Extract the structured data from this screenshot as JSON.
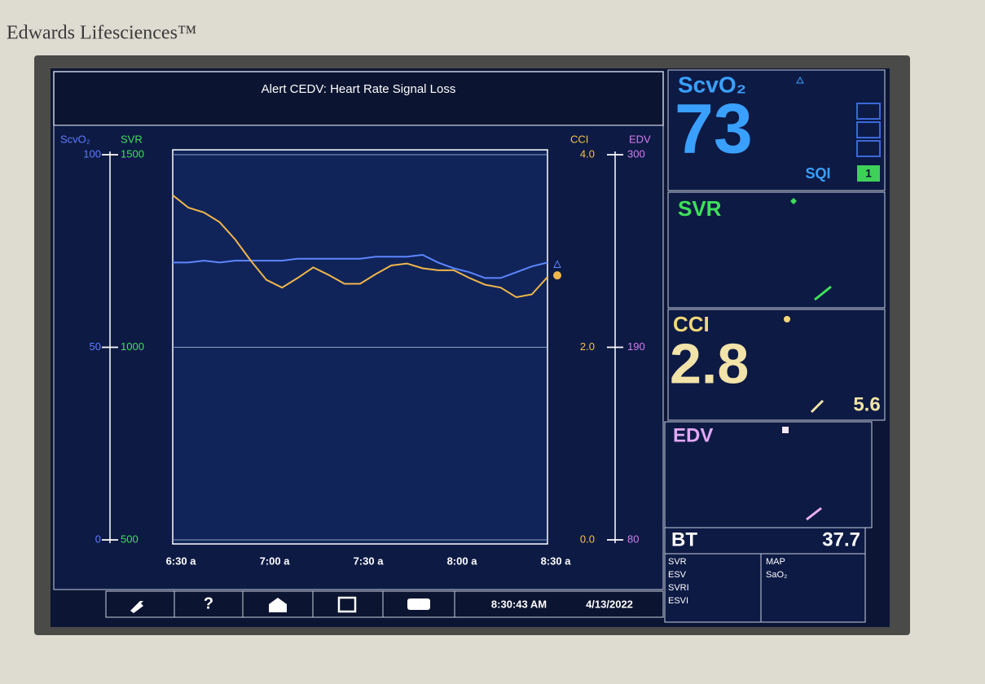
{
  "brand": "Edwards Lifesciences™",
  "alert": "Alert CEDV: Heart Rate Signal Loss",
  "chart_data": {
    "type": "line",
    "categories": [
      "6:30 a",
      null,
      null,
      null,
      null,
      null,
      "7:00 a",
      null,
      null,
      null,
      null,
      null,
      "7:30 a",
      null,
      null,
      null,
      null,
      null,
      "8:00 a",
      null,
      null,
      null,
      null,
      null,
      "8:30 a"
    ],
    "axes": [
      {
        "label": "ScvO₂",
        "color": "#5d7cff",
        "lim": [
          0,
          100
        ],
        "ticks": [
          0,
          50,
          100
        ]
      },
      {
        "label": "SVR",
        "color": "#3ee05a",
        "lim": [
          500,
          1500
        ],
        "ticks": [
          500,
          1000,
          1500
        ]
      },
      {
        "label": "CCI",
        "color": "#f2c34a",
        "lim": [
          0,
          4
        ],
        "ticks": [
          {
            "value": 0,
            "label": "0.0"
          },
          {
            "value": 2,
            "label": "2.0"
          },
          {
            "value": 4,
            "label": "4.0"
          }
        ]
      },
      {
        "label": "EDV",
        "color": "#d27ef0",
        "lim": [
          80,
          300
        ],
        "ticks": [
          80,
          190,
          300
        ]
      }
    ],
    "grid": true,
    "series": [
      {
        "name": "ScvO₂",
        "color": "#5d86ff",
        "axis": 0,
        "values": [
          72,
          72,
          72.5,
          72,
          72.5,
          72.5,
          72.5,
          72.5,
          73,
          73,
          73,
          73,
          73,
          73.5,
          73.5,
          73.5,
          74,
          72,
          70.5,
          69.5,
          68,
          68,
          69.5,
          71,
          72
        ]
      },
      {
        "name": "CCI",
        "color": "#f0b64a",
        "axis": 2,
        "values": [
          3.58,
          3.45,
          3.4,
          3.3,
          3.12,
          2.9,
          2.7,
          2.62,
          2.72,
          2.83,
          2.75,
          2.66,
          2.66,
          2.76,
          2.85,
          2.87,
          2.82,
          2.8,
          2.8,
          2.72,
          2.65,
          2.62,
          2.52,
          2.55,
          2.73
        ]
      }
    ]
  },
  "panels": {
    "scvo2": {
      "label": "ScvO₂",
      "value": "73",
      "sqi_label": "SQI",
      "sqi": "1"
    },
    "svr": {
      "label": "SVR"
    },
    "cci": {
      "label": "CCI",
      "value": "2.8",
      "secondary": "5.6"
    },
    "edv": {
      "label": "EDV"
    },
    "bt": {
      "label": "BT",
      "value": "37.7"
    },
    "list_left": [
      "SVR",
      "ESV",
      "SVRI",
      "ESVI"
    ],
    "list_right": [
      "MAP",
      "SaO₂"
    ]
  },
  "status": {
    "time": "8:30:43 AM",
    "date": "4/13/2022"
  }
}
